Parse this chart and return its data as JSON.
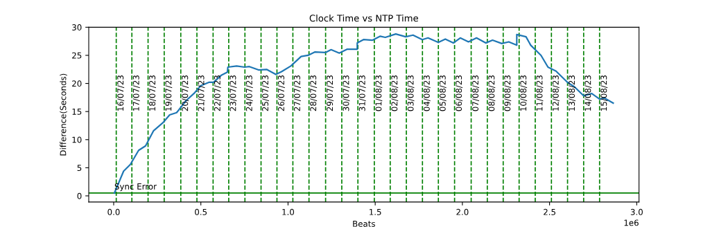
{
  "chart_data": {
    "type": "line",
    "title": "Clock Time vs NTP Time",
    "xlabel": "Beats",
    "ylabel": "Difference(Seconds)",
    "xlim": [
      -0.143,
      3.013
    ],
    "ylim": [
      -1.1,
      30
    ],
    "xticks": [
      {
        "value": 0,
        "label": "0.0"
      },
      0.5,
      {
        "value": 1,
        "label": "1.0"
      },
      1.5,
      {
        "value": 2,
        "label": "2.0"
      },
      2.5,
      {
        "value": 3,
        "label": "3.0"
      }
    ],
    "yticks": [
      0,
      5,
      10,
      15,
      20,
      25,
      30
    ],
    "grid": false,
    "legend": false,
    "line_style": "solid",
    "marker": "none",
    "annotations": [
      "1e6",
      {
        "text": "16/07/23",
        "x": 0.0147,
        "y": 15
      },
      {
        "text": "17/07/23",
        "x": 0.1044,
        "y": 15
      },
      {
        "text": "18/07/23",
        "x": 0.1972,
        "y": 15
      },
      {
        "text": "19/07/23",
        "x": 0.2897,
        "y": 15
      },
      {
        "text": "20/07/23",
        "x": 0.3849,
        "y": 15
      },
      {
        "text": "21/07/23",
        "x": 0.4774,
        "y": 15
      },
      {
        "text": "22/07/23",
        "x": 0.5702,
        "y": 15
      },
      {
        "text": "23/07/23",
        "x": 0.6599,
        "y": 15
      },
      {
        "text": "24/07/23",
        "x": 0.7528,
        "y": 15
      },
      {
        "text": "25/07/23",
        "x": 0.8452,
        "y": 15
      },
      {
        "text": "26/07/23",
        "x": 0.9365,
        "y": 15
      },
      {
        "text": "27/07/23",
        "x": 1.0278,
        "y": 15
      },
      {
        "text": "28/07/23",
        "x": 1.1202,
        "y": 15
      },
      {
        "text": "29/07/23",
        "x": 1.2155,
        "y": 15
      },
      {
        "text": "30/07/23",
        "x": 1.3083,
        "y": 15
      },
      {
        "text": "31/07/23",
        "x": 1.4008,
        "y": 15
      },
      {
        "text": "01/08/23",
        "x": 1.4948,
        "y": 15
      },
      {
        "text": "02/08/23",
        "x": 1.5861,
        "y": 15
      },
      {
        "text": "03/08/23",
        "x": 1.6786,
        "y": 15
      },
      {
        "text": "04/08/23",
        "x": 1.771,
        "y": 15
      },
      {
        "text": "05/08/23",
        "x": 1.8623,
        "y": 15
      },
      {
        "text": "06/08/23",
        "x": 1.9552,
        "y": 15
      },
      {
        "text": "07/08/23",
        "x": 2.0504,
        "y": 15
      },
      {
        "text": "08/08/23",
        "x": 2.1429,
        "y": 15
      },
      {
        "text": "09/08/23",
        "x": 2.2341,
        "y": 15
      },
      {
        "text": "10/08/23",
        "x": 2.3254,
        "y": 15
      },
      {
        "text": "11/08/23",
        "x": 2.4179,
        "y": 15
      },
      {
        "text": "12/08/23",
        "x": 2.5107,
        "y": 15
      },
      {
        "text": "13/08/23",
        "x": 2.6032,
        "y": 15
      },
      {
        "text": "14/08/23",
        "x": 2.6956,
        "y": 15
      },
      {
        "text": "15/08/23",
        "x": 2.7869,
        "y": 15
      }
    ],
    "series": [
      {
        "color": "#1f77b4",
        "x": [
          0.004,
          0.057,
          0.096,
          0.143,
          0.183,
          0.229,
          0.282,
          0.321,
          0.361,
          0.414,
          0.46,
          0.5,
          0.546,
          0.573,
          0.619,
          0.652,
          0.655,
          0.705,
          0.751,
          0.778,
          0.831,
          0.877,
          0.93,
          0.963,
          1.016,
          1.075,
          1.115,
          1.155,
          1.214,
          1.247,
          1.294,
          1.34,
          1.397,
          1.397,
          1.433,
          1.485,
          1.529,
          1.558,
          1.618,
          1.675,
          1.717,
          1.77,
          1.803,
          1.862,
          1.902,
          1.948,
          1.988,
          2.035,
          2.081,
          2.134,
          2.173,
          2.226,
          2.266,
          2.312,
          2.312,
          2.365,
          2.392,
          2.451,
          2.491,
          2.537,
          2.603,
          2.643,
          2.696,
          2.742,
          2.788,
          2.815,
          2.865
        ],
        "values": [
          0.5,
          4.4,
          5.6,
          8.1,
          8.9,
          11.6,
          13.0,
          14.4,
          14.8,
          16.9,
          18.2,
          19.6,
          20.2,
          20.2,
          21.5,
          22.0,
          22.9,
          23.1,
          22.9,
          23.0,
          22.4,
          22.5,
          21.6,
          22.1,
          23.1,
          24.8,
          25.0,
          25.6,
          25.5,
          26.0,
          25.4,
          26.1,
          26.1,
          27.2,
          27.8,
          27.7,
          28.4,
          28.2,
          28.8,
          28.3,
          28.6,
          27.8,
          28.1,
          27.3,
          27.9,
          27.2,
          28.1,
          27.4,
          28.1,
          27.2,
          27.7,
          27.1,
          27.4,
          26.8,
          28.7,
          28.3,
          26.8,
          25.0,
          22.9,
          22.2,
          20.2,
          19.4,
          17.8,
          18.2,
          17.2,
          17.4,
          16.5
        ]
      }
    ],
    "ref_lines": [
      {
        "axis": "y",
        "value": 0.5,
        "label": "Sync Error",
        "color": "#008000",
        "line_style": "solid"
      },
      {
        "axis": "x",
        "value": 0.0147,
        "color": "#008000",
        "line_style": "dashed"
      },
      {
        "axis": "x",
        "value": 0.1044,
        "color": "#008000",
        "line_style": "dashed"
      },
      {
        "axis": "x",
        "value": 0.1972,
        "color": "#008000",
        "line_style": "dashed"
      },
      {
        "axis": "x",
        "value": 0.2897,
        "color": "#008000",
        "line_style": "dashed"
      },
      {
        "axis": "x",
        "value": 0.3849,
        "color": "#008000",
        "line_style": "dashed"
      },
      {
        "axis": "x",
        "value": 0.4774,
        "color": "#008000",
        "line_style": "dashed"
      },
      {
        "axis": "x",
        "value": 0.5702,
        "color": "#008000",
        "line_style": "dashed"
      },
      {
        "axis": "x",
        "value": 0.6599,
        "color": "#008000",
        "line_style": "dashed"
      },
      {
        "axis": "x",
        "value": 0.7528,
        "color": "#008000",
        "line_style": "dashed"
      },
      {
        "axis": "x",
        "value": 0.8452,
        "color": "#008000",
        "line_style": "dashed"
      },
      {
        "axis": "x",
        "value": 0.9365,
        "color": "#008000",
        "line_style": "dashed"
      },
      {
        "axis": "x",
        "value": 1.0278,
        "color": "#008000",
        "line_style": "dashed"
      },
      {
        "axis": "x",
        "value": 1.1202,
        "color": "#008000",
        "line_style": "dashed"
      },
      {
        "axis": "x",
        "value": 1.2155,
        "color": "#008000",
        "line_style": "dashed"
      },
      {
        "axis": "x",
        "value": 1.3083,
        "color": "#008000",
        "line_style": "dashed"
      },
      {
        "axis": "x",
        "value": 1.4008,
        "color": "#008000",
        "line_style": "dashed"
      },
      {
        "axis": "x",
        "value": 1.4948,
        "color": "#008000",
        "line_style": "dashed"
      },
      {
        "axis": "x",
        "value": 1.5861,
        "color": "#008000",
        "line_style": "dashed"
      },
      {
        "axis": "x",
        "value": 1.6786,
        "color": "#008000",
        "line_style": "dashed"
      },
      {
        "axis": "x",
        "value": 1.771,
        "color": "#008000",
        "line_style": "dashed"
      },
      {
        "axis": "x",
        "value": 1.8623,
        "color": "#008000",
        "line_style": "dashed"
      },
      {
        "axis": "x",
        "value": 1.9552,
        "color": "#008000",
        "line_style": "dashed"
      },
      {
        "axis": "x",
        "value": 2.0504,
        "color": "#008000",
        "line_style": "dashed"
      },
      {
        "axis": "x",
        "value": 2.1429,
        "color": "#008000",
        "line_style": "dashed"
      },
      {
        "axis": "x",
        "value": 2.2341,
        "color": "#008000",
        "line_style": "dashed"
      },
      {
        "axis": "x",
        "value": 2.3254,
        "color": "#008000",
        "line_style": "dashed"
      },
      {
        "axis": "x",
        "value": 2.4179,
        "color": "#008000",
        "line_style": "dashed"
      },
      {
        "axis": "x",
        "value": 2.5107,
        "color": "#008000",
        "line_style": "dashed"
      },
      {
        "axis": "x",
        "value": 2.6032,
        "color": "#008000",
        "line_style": "dashed"
      },
      {
        "axis": "x",
        "value": 2.6956,
        "color": "#008000",
        "line_style": "dashed"
      },
      {
        "axis": "x",
        "value": 2.7869,
        "color": "#008000",
        "line_style": "dashed"
      }
    ]
  }
}
